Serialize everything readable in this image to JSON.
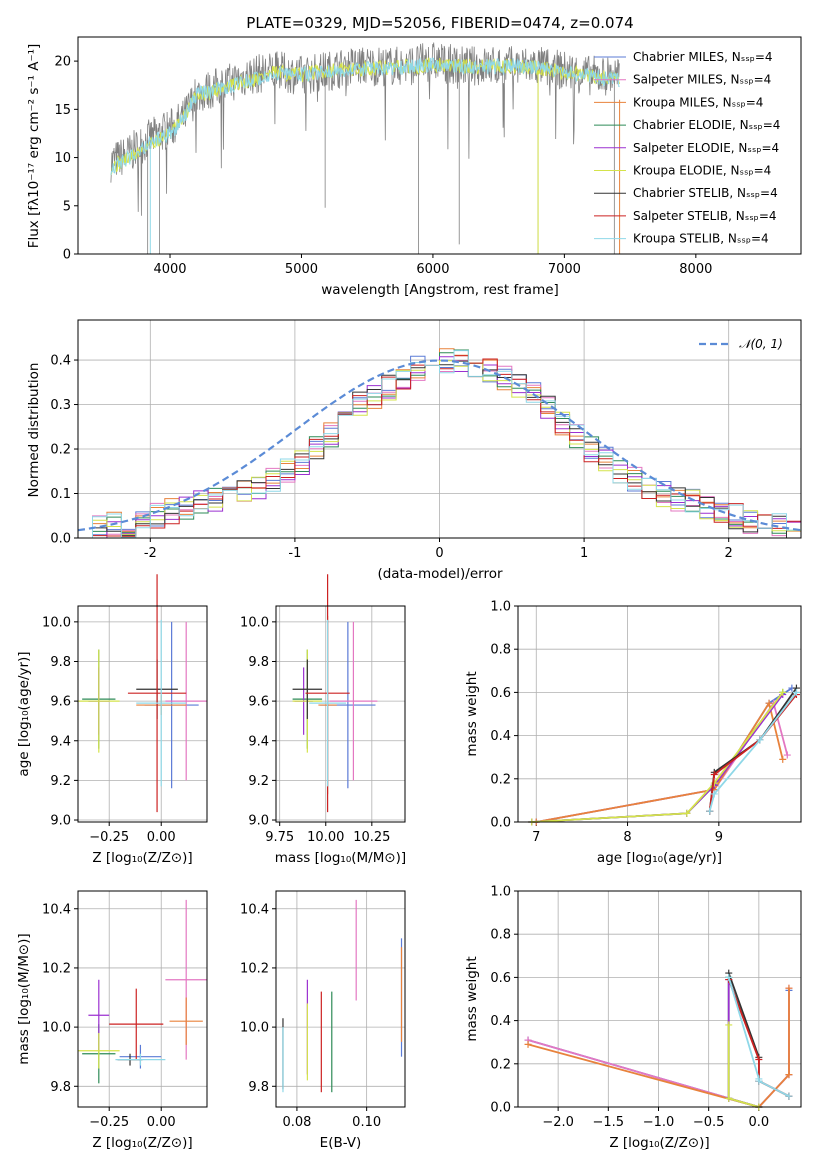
{
  "title": "PLATE=0329, MJD=52056, FIBERID=0474, z=0.074",
  "colors": {
    "Chabrier MILES": "#5b7bd6",
    "Salpeter MILES": "#e377c2",
    "Kroupa MILES": "#e8823c",
    "Chabrier ELODIE": "#2e8b57",
    "Salpeter ELODIE": "#9b30d0",
    "Kroupa ELODIE": "#d4e34a",
    "Chabrier STELIB": "#333333",
    "Salpeter STELIB": "#cc2222",
    "Kroupa STELIB": "#8fd8e8"
  },
  "chart_data": [
    {
      "type": "line",
      "xlabel": "wavelength [Angstrom, rest frame]",
      "ylabel": "Flux [f_λ10^-17 erg cm^-2 s^-1 A^-1]",
      "xlim": [
        3300,
        8800
      ],
      "ylim": [
        0,
        22.5
      ],
      "xticks": [
        4000,
        5000,
        6000,
        7000,
        8000
      ],
      "yticks": [
        0,
        5,
        10,
        15,
        20
      ],
      "legend_position": "right",
      "legend": [
        "Chabrier MILES, N_SSP=4",
        "Salpeter MILES, N_SSP=4",
        "Kroupa MILES, N_SSP=4",
        "Chabrier ELODIE, N_SSP=4",
        "Salpeter ELODIE, N_SSP=4",
        "Kroupa ELODIE, N_SSP=4",
        "Chabrier STELIB, N_SSP=4",
        "Salpeter STELIB, N_SSP=4",
        "Kroupa STELIB, N_SSP=4"
      ],
      "data_continuum": {
        "x": [
          3550,
          3700,
          3850,
          4000,
          4100,
          4200,
          4400,
          4600,
          4800,
          5000,
          5200,
          5400,
          5600,
          5800,
          6000,
          6200,
          6400,
          6600,
          6800,
          7000,
          7200,
          7400
        ],
        "y": [
          9.5,
          10.5,
          12,
          13,
          14,
          16.5,
          17.5,
          18.5,
          19,
          18.5,
          19,
          19.5,
          19.5,
          19.5,
          20,
          19.5,
          19.5,
          19.5,
          19.5,
          19,
          18.5,
          18.5
        ]
      },
      "model_continuum": {
        "x": [
          3550,
          3700,
          3850,
          4000,
          4100,
          4200,
          4400,
          4600,
          4800,
          5000,
          5200,
          5400,
          5600,
          5800,
          6000,
          6200,
          6400,
          6600,
          6800,
          7000,
          7200,
          7400
        ],
        "y": [
          9,
          10,
          11.5,
          12.5,
          14,
          16.5,
          17.2,
          18,
          18.8,
          18.6,
          19,
          19.2,
          19.3,
          19.4,
          19.6,
          19.5,
          19.4,
          19.5,
          19.3,
          18.8,
          18.5,
          18
        ]
      }
    },
    {
      "type": "histogram",
      "xlabel": "(data-model)/error",
      "ylabel": "Normed distribution",
      "xlim": [
        -2.5,
        2.5
      ],
      "ylim": [
        0,
        0.49
      ],
      "xticks": [
        -2,
        -1,
        0,
        1,
        2
      ],
      "yticks": [
        0.0,
        0.1,
        0.2,
        0.3,
        0.4
      ],
      "legend_position": "top-right",
      "legend": [
        "𝒩(0, 1)"
      ],
      "bin_width": 0.1,
      "bin_start": -2.5,
      "bins_common": [
        0.02,
        0.02,
        0.03,
        0.03,
        0.04,
        0.05,
        0.06,
        0.07,
        0.08,
        0.09,
        0.1,
        0.1,
        0.11,
        0.13,
        0.15,
        0.17,
        0.2,
        0.23,
        0.27,
        0.3,
        0.32,
        0.34,
        0.36,
        0.38,
        0.39,
        0.4,
        0.4,
        0.39,
        0.38,
        0.36,
        0.34,
        0.32,
        0.29,
        0.26,
        0.23,
        0.2,
        0.18,
        0.15,
        0.13,
        0.11,
        0.1,
        0.09,
        0.08,
        0.07,
        0.06,
        0.05,
        0.04,
        0.03,
        0.03,
        0.02
      ]
    },
    {
      "type": "scatter",
      "xlabel": "Z [log10(Z/Z⊙)]",
      "ylabel": "age [log10(age/yr)]",
      "xlim": [
        -0.4,
        0.22
      ],
      "ylim": [
        8.99,
        10.08
      ],
      "xticks": [
        -0.25,
        0.0
      ],
      "xticklabels": [
        "−0.25",
        "0.00"
      ],
      "yticks": [
        9.0,
        9.2,
        9.4,
        9.6,
        9.8,
        10.0
      ],
      "points": [
        {
          "series": "Chabrier MILES",
          "x": 0.05,
          "y": 9.58,
          "xerr": 0.13,
          "yerr": 0.42
        },
        {
          "series": "Salpeter MILES",
          "x": 0.12,
          "y": 9.6,
          "xerr": 0.1,
          "yerr": 0.4
        },
        {
          "series": "Kroupa MILES",
          "x": 0.0,
          "y": 9.58,
          "xerr": 0.12,
          "yerr": 0.05
        },
        {
          "series": "Chabrier ELODIE",
          "x": -0.3,
          "y": 9.61,
          "xerr": 0.08,
          "yerr": 0.25
        },
        {
          "series": "Salpeter ELODIE",
          "x": -0.3,
          "y": 9.6,
          "xerr": 0.05,
          "yerr": 0.17
        },
        {
          "series": "Kroupa ELODIE",
          "x": -0.3,
          "y": 9.6,
          "xerr": 0.1,
          "yerr": 0.26
        },
        {
          "series": "Chabrier STELIB",
          "x": -0.02,
          "y": 9.66,
          "xerr": 0.1,
          "yerr": 0.15
        },
        {
          "series": "Salpeter STELIB",
          "x": -0.02,
          "y": 9.64,
          "xerr": 0.14,
          "yerr": 0.6
        },
        {
          "series": "Kroupa STELIB",
          "x": 0.0,
          "y": 9.59,
          "xerr": 0.12,
          "yerr": 0.42
        }
      ]
    },
    {
      "type": "scatter",
      "xlabel": "mass [log10(M/M⊙)]",
      "ylabel": "",
      "xlim": [
        9.73,
        10.43
      ],
      "ylim": [
        8.99,
        10.08
      ],
      "xticks": [
        9.75,
        10.0,
        10.25
      ],
      "xticklabels": [
        "9.75",
        "10.00",
        "10.25"
      ],
      "yticks": [
        9.0,
        9.2,
        9.4,
        9.6,
        9.8,
        10.0
      ],
      "points": [
        {
          "series": "Chabrier MILES",
          "x": 10.12,
          "y": 9.58,
          "xerr": 0.15,
          "yerr": 0.42
        },
        {
          "series": "Salpeter MILES",
          "x": 10.15,
          "y": 9.6,
          "xerr": 0.13,
          "yerr": 0.4
        },
        {
          "series": "Kroupa MILES",
          "x": 10.01,
          "y": 9.58,
          "xerr": 0.05,
          "yerr": 0.45
        },
        {
          "series": "Chabrier ELODIE",
          "x": 9.9,
          "y": 9.61,
          "xerr": 0.08,
          "yerr": 0.25
        },
        {
          "series": "Salpeter ELODIE",
          "x": 9.88,
          "y": 9.6,
          "xerr": 0.05,
          "yerr": 0.17
        },
        {
          "series": "Kroupa ELODIE",
          "x": 9.9,
          "y": 9.6,
          "xerr": 0.08,
          "yerr": 0.26
        },
        {
          "series": "Chabrier STELIB",
          "x": 9.9,
          "y": 9.66,
          "xerr": 0.08,
          "yerr": 0.15
        },
        {
          "series": "Salpeter STELIB",
          "x": 10.01,
          "y": 9.64,
          "xerr": 0.12,
          "yerr": 0.6
        },
        {
          "series": "Kroupa STELIB",
          "x": 10.01,
          "y": 9.59,
          "xerr": 0.1,
          "yerr": 0.42
        }
      ]
    },
    {
      "type": "line",
      "xlabel": "age [log10(age/yr)]",
      "ylabel": "mass weight",
      "xlim": [
        6.8,
        9.9
      ],
      "ylim": [
        0,
        1.0
      ],
      "xticks": [
        7,
        8,
        9
      ],
      "yticks": [
        0.0,
        0.2,
        0.4,
        0.6,
        0.8,
        1.0
      ],
      "series": [
        {
          "name": "Chabrier MILES",
          "x": [
            7.0,
            8.95,
            9.55,
            9.8
          ],
          "y": [
            0.0,
            0.15,
            0.55,
            0.62
          ]
        },
        {
          "name": "Salpeter MILES",
          "x": [
            7.0,
            8.95,
            9.6,
            9.75
          ],
          "y": [
            0.0,
            0.15,
            0.55,
            0.31
          ]
        },
        {
          "name": "Kroupa MILES",
          "x": [
            7.0,
            8.95,
            9.55,
            9.7
          ],
          "y": [
            0.0,
            0.15,
            0.55,
            0.29
          ]
        },
        {
          "name": "Chabrier ELODIE",
          "x": [
            6.95,
            8.65,
            8.95,
            9.7
          ],
          "y": [
            0.0,
            0.04,
            0.17,
            0.6
          ]
        },
        {
          "name": "Salpeter ELODIE",
          "x": [
            6.95,
            8.65,
            8.95,
            9.7
          ],
          "y": [
            0.0,
            0.04,
            0.17,
            0.59
          ]
        },
        {
          "name": "Kroupa ELODIE",
          "x": [
            6.95,
            8.65,
            8.95,
            9.7
          ],
          "y": [
            0.0,
            0.04,
            0.18,
            0.6
          ]
        },
        {
          "name": "Chabrier STELIB",
          "x": [
            8.9,
            8.95,
            9.45,
            9.85
          ],
          "y": [
            0.05,
            0.23,
            0.38,
            0.62
          ]
        },
        {
          "name": "Salpeter STELIB",
          "x": [
            8.9,
            8.95,
            9.45,
            9.85
          ],
          "y": [
            0.05,
            0.22,
            0.38,
            0.59
          ]
        },
        {
          "name": "Kroupa STELIB",
          "x": [
            8.9,
            8.95,
            9.45,
            9.85
          ],
          "y": [
            0.05,
            0.13,
            0.38,
            0.6
          ]
        }
      ]
    },
    {
      "type": "scatter",
      "xlabel": "Z [log10(Z/Z⊙)]",
      "ylabel": "mass [log10(M/M⊙)]",
      "xlim": [
        -0.4,
        0.22
      ],
      "ylim": [
        9.73,
        10.46
      ],
      "xticks": [
        -0.25,
        0.0
      ],
      "xticklabels": [
        "−0.25",
        "0.00"
      ],
      "yticks": [
        9.8,
        10.0,
        10.2,
        10.4
      ],
      "points": [
        {
          "series": "Chabrier MILES",
          "x": -0.1,
          "y": 9.9,
          "xerr": 0.1,
          "yerr": 0.04
        },
        {
          "series": "Salpeter MILES",
          "x": 0.12,
          "y": 10.16,
          "xerr": 0.1,
          "yerr": 0.27
        },
        {
          "series": "Kroupa MILES",
          "x": 0.12,
          "y": 10.02,
          "xerr": 0.08,
          "yerr": 0.08
        },
        {
          "series": "Chabrier ELODIE",
          "x": -0.3,
          "y": 9.91,
          "xerr": 0.08,
          "yerr": 0.1
        },
        {
          "series": "Salpeter ELODIE",
          "x": -0.3,
          "y": 10.04,
          "xerr": 0.05,
          "yerr": 0.12
        },
        {
          "series": "Kroupa ELODIE",
          "x": -0.3,
          "y": 9.92,
          "xerr": 0.1,
          "yerr": 0.06
        },
        {
          "series": "Chabrier STELIB",
          "x": -0.15,
          "y": 9.89,
          "xerr": 0.06,
          "yerr": 0.02
        },
        {
          "series": "Salpeter STELIB",
          "x": -0.12,
          "y": 10.01,
          "xerr": 0.13,
          "yerr": 0.12
        },
        {
          "series": "Kroupa STELIB",
          "x": -0.1,
          "y": 9.89,
          "xerr": 0.12,
          "yerr": 0.02
        }
      ]
    },
    {
      "type": "scatter",
      "xlabel": "E(B-V)",
      "ylabel": "",
      "xlim": [
        0.074,
        0.111
      ],
      "ylim": [
        9.73,
        10.46
      ],
      "xticks": [
        0.08,
        0.1
      ],
      "xticklabels": [
        "0.08",
        "0.10"
      ],
      "yticks": [
        9.8,
        10.0,
        10.2,
        10.4
      ],
      "points": [
        {
          "series": "Chabrier MILES",
          "x": 0.11,
          "y": 10.1,
          "yerr": 0.2
        },
        {
          "series": "Salpeter MILES",
          "x": 0.097,
          "y": 10.26,
          "yerr": 0.17
        },
        {
          "series": "Kroupa MILES",
          "x": 0.11,
          "y": 10.11,
          "yerr": 0.16
        },
        {
          "series": "Chabrier ELODIE",
          "x": 0.09,
          "y": 9.95,
          "yerr": 0.17
        },
        {
          "series": "Salpeter ELODIE",
          "x": 0.083,
          "y": 10.0,
          "yerr": 0.16
        },
        {
          "series": "Kroupa ELODIE",
          "x": 0.083,
          "y": 9.95,
          "yerr": 0.13
        },
        {
          "series": "Chabrier STELIB",
          "x": 0.076,
          "y": 9.91,
          "yerr": 0.12
        },
        {
          "series": "Salpeter STELIB",
          "x": 0.087,
          "y": 9.95,
          "yerr": 0.17
        },
        {
          "series": "Kroupa STELIB",
          "x": 0.076,
          "y": 9.89,
          "yerr": 0.11
        }
      ]
    },
    {
      "type": "line",
      "xlabel": "Z [log10(Z/Z⊙)]",
      "ylabel": "mass weight",
      "xlim": [
        -2.4,
        0.42
      ],
      "ylim": [
        0,
        1.0
      ],
      "xticks": [
        -2.0,
        -1.5,
        -1.0,
        -0.5,
        0.0
      ],
      "xticklabels": [
        "−2.0",
        "−1.5",
        "−1.0",
        "−0.5",
        "0.0"
      ],
      "yticks": [
        0.0,
        0.2,
        0.4,
        0.6,
        0.8,
        1.0
      ],
      "series": [
        {
          "name": "Chabrier MILES",
          "x": [
            -2.3,
            0.0,
            0.3,
            0.3
          ],
          "y": [
            0.31,
            0.0,
            0.15,
            0.54
          ]
        },
        {
          "name": "Salpeter MILES",
          "x": [
            -2.3,
            0.0,
            0.3,
            0.3
          ],
          "y": [
            0.31,
            0.0,
            0.15,
            0.55
          ]
        },
        {
          "name": "Kroupa MILES",
          "x": [
            -2.3,
            0.0,
            0.3,
            0.3
          ],
          "y": [
            0.29,
            0.0,
            0.15,
            0.55
          ]
        },
        {
          "name": "Chabrier ELODIE",
          "x": [
            -0.3,
            -0.3,
            0.0
          ],
          "y": [
            0.6,
            0.04,
            0.0
          ]
        },
        {
          "name": "Salpeter ELODIE",
          "x": [
            -0.3,
            -0.3,
            0.0
          ],
          "y": [
            0.59,
            0.04,
            0.0
          ]
        },
        {
          "name": "Kroupa ELODIE",
          "x": [
            -0.3,
            -0.3,
            0.0
          ],
          "y": [
            0.38,
            0.04,
            0.0
          ]
        },
        {
          "name": "Chabrier STELIB",
          "x": [
            -0.3,
            0.0,
            0.0,
            0.3
          ],
          "y": [
            0.62,
            0.23,
            0.12,
            0.05
          ]
        },
        {
          "name": "Salpeter STELIB",
          "x": [
            -0.3,
            0.0,
            0.0,
            0.3
          ],
          "y": [
            0.59,
            0.22,
            0.12,
            0.05
          ]
        },
        {
          "name": "Kroupa STELIB",
          "x": [
            -0.3,
            0.0,
            0.0,
            0.3
          ],
          "y": [
            0.6,
            0.13,
            0.12,
            0.05
          ]
        }
      ]
    }
  ]
}
